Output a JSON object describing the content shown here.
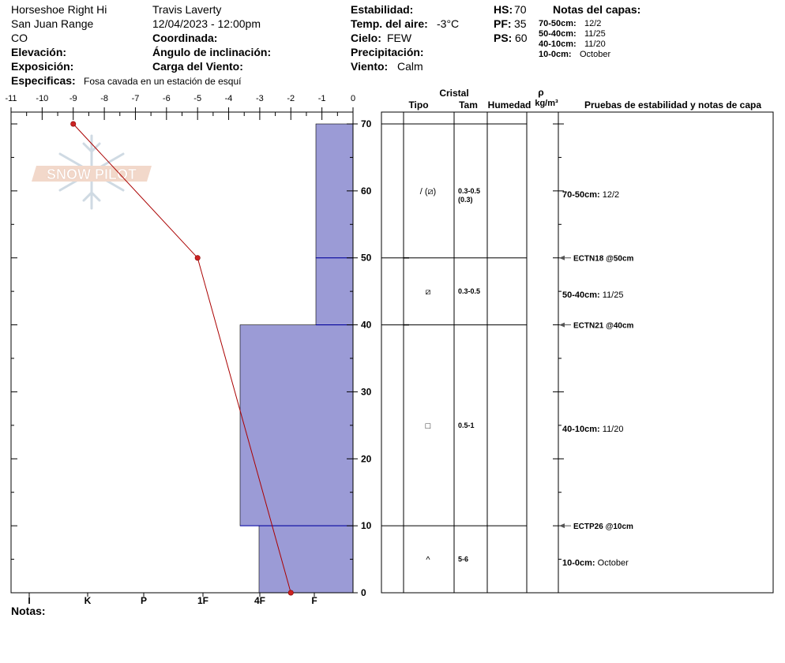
{
  "header": {
    "location": "Horseshoe Right Hi",
    "range": "San Juan Range",
    "state": "CO",
    "elevation_label": "Elevación:",
    "exposure_label": "Exposición:",
    "specifics_label": "Especificas:",
    "specifics_value": "Fosa cavada en un estación de esquí",
    "observer": "Travis Laverty",
    "datetime": "12/04/2023 - 12:00pm",
    "coord_label": "Coordinada:",
    "slope_label": "Ángulo de inclinación:",
    "wind_load_label": "Carga del Viento:",
    "stability_label": "Estabilidad:",
    "air_temp_label": "Temp. del aire:",
    "air_temp_value": "-3°C",
    "sky_label": "Cielo:",
    "sky_value": "FEW",
    "precip_label": "Precipitación:",
    "wind_label": "Viento:",
    "wind_value": "Calm",
    "hs_label": "HS:",
    "hs_value": "70",
    "pf_label": "PF:",
    "pf_value": "35",
    "ps_label": "PS:",
    "ps_value": "60",
    "layer_notes_title": "Notas del capas:",
    "layer_notes": [
      {
        "range": "70-50cm:",
        "value": "12/2"
      },
      {
        "range": "50-40cm:",
        "value": "11/25"
      },
      {
        "range": "40-10cm:",
        "value": "11/20"
      },
      {
        "range": "10-0cm:",
        "value": "October"
      }
    ]
  },
  "logo_text": "SNOW PILOT",
  "notes_label": "Notas:",
  "right_headers": {
    "cristal": "Cristal",
    "tipo": "Tipo",
    "tam": "Tam",
    "humedad": "Humedad",
    "rho": "ρ",
    "density_unit": "kg/m³",
    "pruebas": "Pruebas de estabilidad y notas de capa"
  },
  "chart_data": {
    "type": "snow-profile",
    "temp_axis": {
      "min": -11,
      "max": 0,
      "ticks": [
        "-11",
        "-10",
        "-9",
        "-8",
        "-7",
        "-6",
        "-5",
        "-4",
        "-3",
        "-2",
        "-1",
        "0"
      ]
    },
    "height_axis": {
      "min": 0,
      "max": 70,
      "ticks": [
        "0",
        "10",
        "20",
        "30",
        "40",
        "50",
        "60",
        "70"
      ]
    },
    "hardness_labels": [
      "I",
      "K",
      "P",
      "1F",
      "4F",
      "F"
    ],
    "hardness_layers": [
      {
        "bottom": 50,
        "top": 70,
        "hardness": "F"
      },
      {
        "bottom": 40,
        "top": 50,
        "hardness": "F"
      },
      {
        "bottom": 10,
        "top": 40,
        "hardness": "4F+"
      },
      {
        "bottom": 0,
        "top": 10,
        "hardness": "4F"
      }
    ],
    "temperature_profile": [
      {
        "height": 70,
        "temp": -9
      },
      {
        "height": 50,
        "temp": -5
      },
      {
        "height": 0,
        "temp": -2
      }
    ],
    "layer_boundaries": [
      70,
      50,
      40,
      10,
      0
    ],
    "crystals": [
      {
        "height": 60,
        "type_label": "/ (⧄)",
        "size": "0.3-0.5",
        "size2": "(0.3)"
      },
      {
        "height": 45,
        "type_label": "⧄",
        "size": "0.3-0.5",
        "size2": ""
      },
      {
        "height": 25,
        "type_label": "□",
        "size": "0.5-1",
        "size2": ""
      },
      {
        "height": 5,
        "type_label": "^",
        "size": "5-6",
        "size2": ""
      }
    ],
    "stability_tests": [
      {
        "height": 50,
        "label": "ECTN18 @50cm"
      },
      {
        "height": 40,
        "label": "ECTN21 @40cm"
      },
      {
        "height": 10,
        "label": "ECTP26 @10cm"
      }
    ],
    "layer_comments": [
      {
        "height": 60,
        "range": "70-50cm:",
        "value": "12/2"
      },
      {
        "height": 45,
        "range": "50-40cm:",
        "value": "11/25"
      },
      {
        "height": 25,
        "range": "40-10cm:",
        "value": "11/20"
      },
      {
        "height": 5,
        "range": "10-0cm:",
        "value": "October"
      }
    ],
    "colors": {
      "hardness_fill": "#9b9bd6",
      "hardness_line": "#0000aa",
      "temp_line": "#aa0000"
    }
  }
}
